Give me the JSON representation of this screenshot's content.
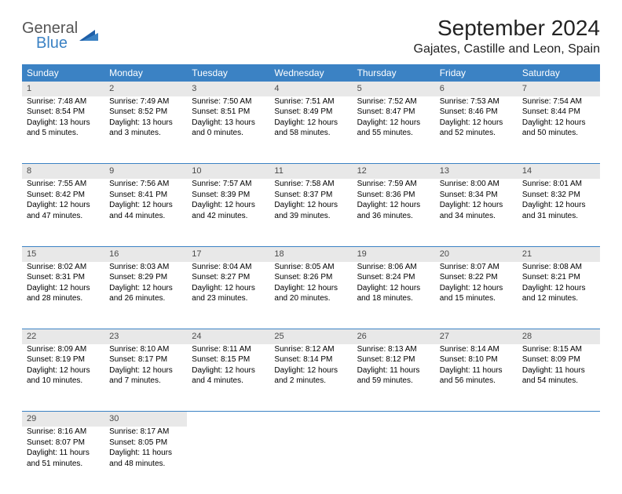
{
  "brand": {
    "part1": "General",
    "part2": "Blue"
  },
  "title": "September 2024",
  "location": "Gajates, Castille and Leon, Spain",
  "colors": {
    "header_bg": "#3b82c4",
    "header_fg": "#ffffff",
    "daynum_bg": "#e8e8e8",
    "border": "#3b82c4",
    "background": "#ffffff"
  },
  "weekdays": [
    "Sunday",
    "Monday",
    "Tuesday",
    "Wednesday",
    "Thursday",
    "Friday",
    "Saturday"
  ],
  "weeks": [
    [
      {
        "n": "1",
        "sr": "Sunrise: 7:48 AM",
        "ss": "Sunset: 8:54 PM",
        "d1": "Daylight: 13 hours",
        "d2": "and 5 minutes."
      },
      {
        "n": "2",
        "sr": "Sunrise: 7:49 AM",
        "ss": "Sunset: 8:52 PM",
        "d1": "Daylight: 13 hours",
        "d2": "and 3 minutes."
      },
      {
        "n": "3",
        "sr": "Sunrise: 7:50 AM",
        "ss": "Sunset: 8:51 PM",
        "d1": "Daylight: 13 hours",
        "d2": "and 0 minutes."
      },
      {
        "n": "4",
        "sr": "Sunrise: 7:51 AM",
        "ss": "Sunset: 8:49 PM",
        "d1": "Daylight: 12 hours",
        "d2": "and 58 minutes."
      },
      {
        "n": "5",
        "sr": "Sunrise: 7:52 AM",
        "ss": "Sunset: 8:47 PM",
        "d1": "Daylight: 12 hours",
        "d2": "and 55 minutes."
      },
      {
        "n": "6",
        "sr": "Sunrise: 7:53 AM",
        "ss": "Sunset: 8:46 PM",
        "d1": "Daylight: 12 hours",
        "d2": "and 52 minutes."
      },
      {
        "n": "7",
        "sr": "Sunrise: 7:54 AM",
        "ss": "Sunset: 8:44 PM",
        "d1": "Daylight: 12 hours",
        "d2": "and 50 minutes."
      }
    ],
    [
      {
        "n": "8",
        "sr": "Sunrise: 7:55 AM",
        "ss": "Sunset: 8:42 PM",
        "d1": "Daylight: 12 hours",
        "d2": "and 47 minutes."
      },
      {
        "n": "9",
        "sr": "Sunrise: 7:56 AM",
        "ss": "Sunset: 8:41 PM",
        "d1": "Daylight: 12 hours",
        "d2": "and 44 minutes."
      },
      {
        "n": "10",
        "sr": "Sunrise: 7:57 AM",
        "ss": "Sunset: 8:39 PM",
        "d1": "Daylight: 12 hours",
        "d2": "and 42 minutes."
      },
      {
        "n": "11",
        "sr": "Sunrise: 7:58 AM",
        "ss": "Sunset: 8:37 PM",
        "d1": "Daylight: 12 hours",
        "d2": "and 39 minutes."
      },
      {
        "n": "12",
        "sr": "Sunrise: 7:59 AM",
        "ss": "Sunset: 8:36 PM",
        "d1": "Daylight: 12 hours",
        "d2": "and 36 minutes."
      },
      {
        "n": "13",
        "sr": "Sunrise: 8:00 AM",
        "ss": "Sunset: 8:34 PM",
        "d1": "Daylight: 12 hours",
        "d2": "and 34 minutes."
      },
      {
        "n": "14",
        "sr": "Sunrise: 8:01 AM",
        "ss": "Sunset: 8:32 PM",
        "d1": "Daylight: 12 hours",
        "d2": "and 31 minutes."
      }
    ],
    [
      {
        "n": "15",
        "sr": "Sunrise: 8:02 AM",
        "ss": "Sunset: 8:31 PM",
        "d1": "Daylight: 12 hours",
        "d2": "and 28 minutes."
      },
      {
        "n": "16",
        "sr": "Sunrise: 8:03 AM",
        "ss": "Sunset: 8:29 PM",
        "d1": "Daylight: 12 hours",
        "d2": "and 26 minutes."
      },
      {
        "n": "17",
        "sr": "Sunrise: 8:04 AM",
        "ss": "Sunset: 8:27 PM",
        "d1": "Daylight: 12 hours",
        "d2": "and 23 minutes."
      },
      {
        "n": "18",
        "sr": "Sunrise: 8:05 AM",
        "ss": "Sunset: 8:26 PM",
        "d1": "Daylight: 12 hours",
        "d2": "and 20 minutes."
      },
      {
        "n": "19",
        "sr": "Sunrise: 8:06 AM",
        "ss": "Sunset: 8:24 PM",
        "d1": "Daylight: 12 hours",
        "d2": "and 18 minutes."
      },
      {
        "n": "20",
        "sr": "Sunrise: 8:07 AM",
        "ss": "Sunset: 8:22 PM",
        "d1": "Daylight: 12 hours",
        "d2": "and 15 minutes."
      },
      {
        "n": "21",
        "sr": "Sunrise: 8:08 AM",
        "ss": "Sunset: 8:21 PM",
        "d1": "Daylight: 12 hours",
        "d2": "and 12 minutes."
      }
    ],
    [
      {
        "n": "22",
        "sr": "Sunrise: 8:09 AM",
        "ss": "Sunset: 8:19 PM",
        "d1": "Daylight: 12 hours",
        "d2": "and 10 minutes."
      },
      {
        "n": "23",
        "sr": "Sunrise: 8:10 AM",
        "ss": "Sunset: 8:17 PM",
        "d1": "Daylight: 12 hours",
        "d2": "and 7 minutes."
      },
      {
        "n": "24",
        "sr": "Sunrise: 8:11 AM",
        "ss": "Sunset: 8:15 PM",
        "d1": "Daylight: 12 hours",
        "d2": "and 4 minutes."
      },
      {
        "n": "25",
        "sr": "Sunrise: 8:12 AM",
        "ss": "Sunset: 8:14 PM",
        "d1": "Daylight: 12 hours",
        "d2": "and 2 minutes."
      },
      {
        "n": "26",
        "sr": "Sunrise: 8:13 AM",
        "ss": "Sunset: 8:12 PM",
        "d1": "Daylight: 11 hours",
        "d2": "and 59 minutes."
      },
      {
        "n": "27",
        "sr": "Sunrise: 8:14 AM",
        "ss": "Sunset: 8:10 PM",
        "d1": "Daylight: 11 hours",
        "d2": "and 56 minutes."
      },
      {
        "n": "28",
        "sr": "Sunrise: 8:15 AM",
        "ss": "Sunset: 8:09 PM",
        "d1": "Daylight: 11 hours",
        "d2": "and 54 minutes."
      }
    ],
    [
      {
        "n": "29",
        "sr": "Sunrise: 8:16 AM",
        "ss": "Sunset: 8:07 PM",
        "d1": "Daylight: 11 hours",
        "d2": "and 51 minutes."
      },
      {
        "n": "30",
        "sr": "Sunrise: 8:17 AM",
        "ss": "Sunset: 8:05 PM",
        "d1": "Daylight: 11 hours",
        "d2": "and 48 minutes."
      },
      null,
      null,
      null,
      null,
      null
    ]
  ]
}
